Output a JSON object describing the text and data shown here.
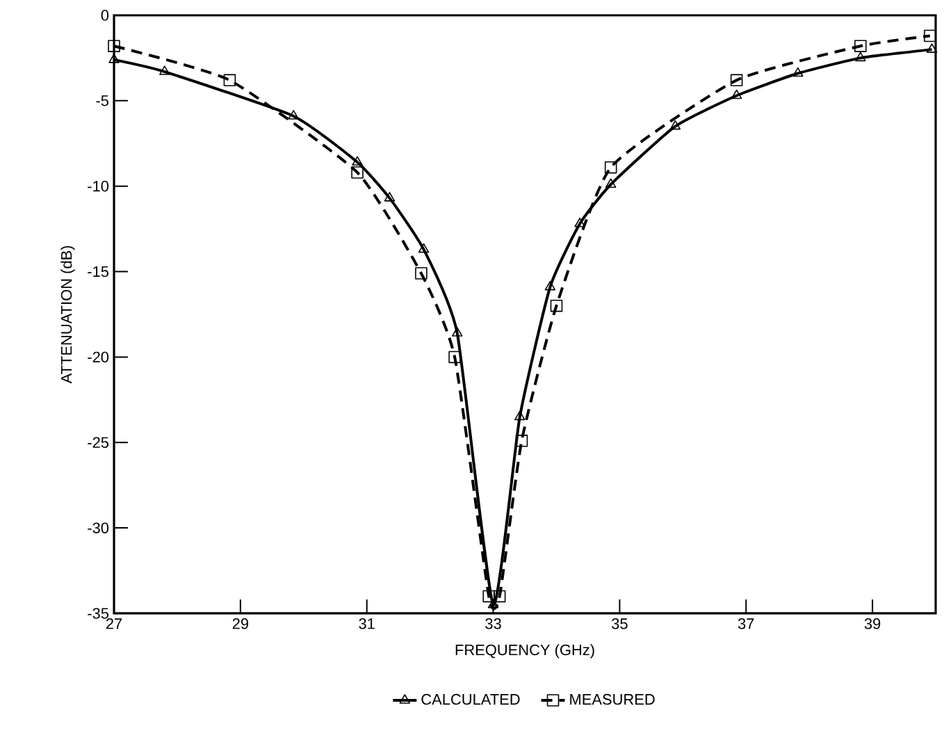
{
  "chart_data": {
    "type": "line",
    "xlabel": "FREQUENCY (GHz)",
    "ylabel": "ATTENUATION (dB)",
    "xlim": [
      27,
      40
    ],
    "ylim": [
      -35,
      0
    ],
    "xticks": [
      27,
      29,
      31,
      33,
      35,
      37,
      39
    ],
    "yticks": [
      -35,
      -30,
      -25,
      -20,
      -15,
      -10,
      -5,
      0
    ],
    "legend": "bottom",
    "series": [
      {
        "name": "CALCULATED",
        "color": "#000000",
        "marker": "triangle",
        "line_style": "solid",
        "x": [
          27.0,
          27.8,
          29.84,
          30.85,
          31.36,
          31.9,
          32.43,
          33.0,
          33.42,
          33.9,
          34.37,
          34.86,
          35.88,
          36.85,
          37.82,
          38.81,
          39.94
        ],
        "values": [
          -2.6,
          -3.3,
          -5.9,
          -8.6,
          -10.7,
          -13.7,
          -18.6,
          -34.5,
          -23.5,
          -15.9,
          -12.2,
          -9.9,
          -6.5,
          -4.7,
          -3.4,
          -2.5,
          -2.0
        ]
      },
      {
        "name": "MEASURED",
        "color": "#000000",
        "marker": "square",
        "line_style": "dashed",
        "x": [
          27.0,
          28.83,
          30.85,
          31.86,
          32.39,
          32.93,
          33.1,
          33.45,
          34.0,
          34.86,
          36.85,
          38.81,
          39.91
        ],
        "values": [
          -1.8,
          -3.8,
          -9.2,
          -15.1,
          -20.0,
          -34.0,
          -34.0,
          -24.9,
          -17.0,
          -8.9,
          -3.8,
          -1.8,
          -1.2
        ]
      }
    ]
  }
}
